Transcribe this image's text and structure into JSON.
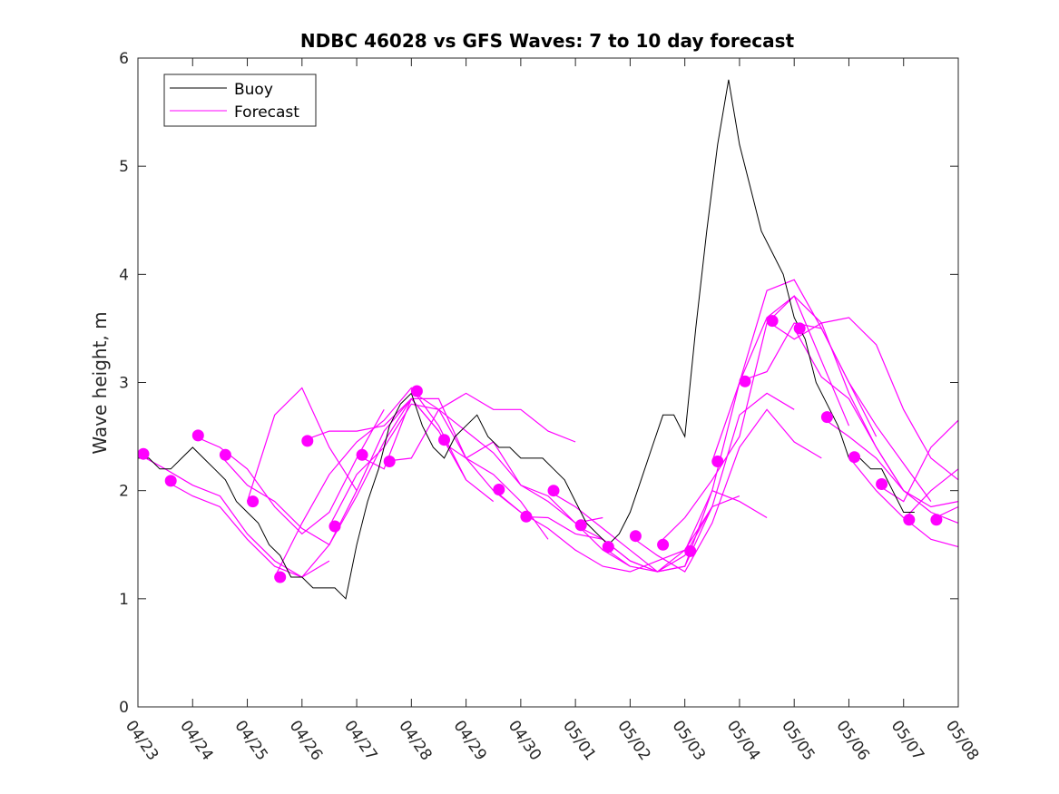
{
  "chart_data": {
    "type": "line",
    "title": "NDBC 46028 vs GFS Waves: 7 to 10 day forecast",
    "xlabel": "",
    "ylabel": "Wave height, m",
    "xlim": [
      "04/23",
      "05/08"
    ],
    "ylim": [
      0,
      6
    ],
    "x_ticks": [
      "04/23",
      "04/24",
      "04/25",
      "04/26",
      "04/27",
      "04/28",
      "04/29",
      "04/30",
      "05/01",
      "05/02",
      "05/03",
      "05/04",
      "05/05",
      "05/06",
      "05/07",
      "05/08"
    ],
    "y_ticks": [
      0,
      1,
      2,
      3,
      4,
      5,
      6
    ],
    "grid": false,
    "legend": {
      "position": "top-left",
      "entries": [
        "Buoy",
        "Forecast"
      ]
    },
    "colors": {
      "buoy": "#000000",
      "forecast": "#ff00ff",
      "axis": "#262626"
    },
    "buoy": {
      "name": "Buoy",
      "x": [
        0.0,
        0.2,
        0.4,
        0.6,
        0.8,
        1.0,
        1.2,
        1.4,
        1.6,
        1.8,
        2.0,
        2.2,
        2.4,
        2.6,
        2.8,
        3.0,
        3.2,
        3.4,
        3.6,
        3.8,
        4.0,
        4.2,
        4.4,
        4.6,
        4.8,
        5.0,
        5.2,
        5.4,
        5.6,
        5.8,
        6.0,
        6.2,
        6.4,
        6.6,
        6.8,
        7.0,
        7.2,
        7.4,
        7.6,
        7.8,
        8.0,
        8.2,
        8.4,
        8.6,
        8.8,
        9.0,
        9.2,
        9.4,
        9.6,
        9.8,
        10.0,
        10.2,
        10.4,
        10.6,
        10.8,
        11.0,
        11.2,
        11.4,
        11.6,
        11.8,
        12.0,
        12.2,
        12.4,
        12.6,
        12.8,
        13.0,
        13.2,
        13.4,
        13.6,
        13.8,
        14.0,
        14.2
      ],
      "values": [
        2.3,
        2.3,
        2.2,
        2.2,
        2.3,
        2.4,
        2.3,
        2.2,
        2.1,
        1.9,
        1.8,
        1.7,
        1.5,
        1.4,
        1.2,
        1.2,
        1.1,
        1.1,
        1.1,
        1.0,
        1.5,
        1.9,
        2.2,
        2.6,
        2.8,
        2.9,
        2.6,
        2.4,
        2.3,
        2.5,
        2.6,
        2.7,
        2.5,
        2.4,
        2.4,
        2.3,
        2.3,
        2.3,
        2.2,
        2.1,
        1.9,
        1.7,
        1.6,
        1.5,
        1.6,
        1.8,
        2.1,
        2.4,
        2.7,
        2.7,
        2.5,
        3.5,
        4.4,
        5.2,
        5.8,
        5.2,
        4.8,
        4.4,
        4.2,
        4.0,
        3.6,
        3.4,
        3.0,
        2.8,
        2.6,
        2.3,
        2.3,
        2.2,
        2.2,
        2.0,
        1.8,
        1.8
      ]
    },
    "forecasts": [
      {
        "x": [
          0.0,
          0.5,
          1.0,
          1.5,
          2.0,
          2.5,
          3.0,
          3.5
        ],
        "values": [
          2.34,
          2.2,
          2.05,
          1.95,
          1.6,
          1.35,
          1.2,
          1.35
        ]
      },
      {
        "x": [
          0.5,
          1.0,
          1.5,
          2.0,
          2.5,
          3.0,
          3.5,
          4.0
        ],
        "values": [
          2.09,
          1.95,
          1.85,
          1.55,
          1.3,
          1.2,
          1.5,
          2.0
        ]
      },
      {
        "x": [
          1.0,
          1.5,
          2.0,
          2.5,
          3.0,
          3.5,
          4.0,
          4.5
        ],
        "values": [
          2.51,
          2.4,
          2.2,
          1.85,
          1.6,
          1.8,
          2.3,
          2.75
        ]
      },
      {
        "x": [
          1.5,
          2.0,
          2.5,
          3.0,
          3.5,
          4.0,
          4.5,
          5.0
        ],
        "values": [
          2.33,
          2.05,
          1.9,
          1.65,
          1.5,
          1.95,
          2.45,
          2.85
        ]
      },
      {
        "x": [
          2.0,
          2.5,
          3.0,
          3.5,
          4.0,
          4.5,
          5.0,
          5.5
        ],
        "values": [
          1.9,
          2.7,
          2.95,
          2.4,
          2.0,
          2.55,
          2.85,
          2.55
        ]
      },
      {
        "x": [
          2.5,
          3.0,
          3.5,
          4.0,
          4.5,
          5.0,
          5.5,
          6.0
        ],
        "values": [
          1.2,
          1.7,
          2.15,
          2.45,
          2.65,
          2.95,
          2.6,
          2.1
        ]
      },
      {
        "x": [
          3.0,
          3.5,
          4.0,
          4.5,
          5.0,
          5.5,
          6.0,
          6.5
        ],
        "values": [
          2.46,
          2.55,
          2.55,
          2.6,
          2.85,
          2.55,
          2.1,
          1.9
        ]
      },
      {
        "x": [
          3.5,
          4.0,
          4.5,
          5.0,
          5.5,
          6.0,
          6.5,
          7.0
        ],
        "values": [
          1.67,
          2.15,
          2.4,
          2.8,
          2.75,
          2.3,
          2.0,
          1.8
        ]
      },
      {
        "x": [
          4.0,
          4.5,
          5.0,
          5.5,
          6.0,
          6.5,
          7.0,
          7.5
        ],
        "values": [
          2.33,
          2.2,
          2.85,
          2.85,
          2.3,
          2.15,
          1.9,
          1.55
        ]
      },
      {
        "x": [
          4.5,
          5.0,
          5.5,
          6.0,
          6.5,
          7.0,
          7.5,
          8.0
        ],
        "values": [
          2.27,
          2.3,
          2.75,
          2.9,
          2.75,
          2.75,
          2.55,
          2.45
        ]
      },
      {
        "x": [
          5.0,
          5.5,
          6.0,
          6.5,
          7.0,
          7.5,
          8.0,
          8.5
        ],
        "values": [
          2.92,
          2.75,
          2.55,
          2.35,
          2.05,
          1.9,
          1.7,
          1.75
        ]
      },
      {
        "x": [
          5.5,
          6.0,
          6.5,
          7.0,
          7.5,
          8.0,
          8.5,
          9.0
        ],
        "values": [
          2.47,
          2.3,
          2.45,
          2.05,
          1.95,
          1.7,
          1.45,
          1.3
        ]
      },
      {
        "x": [
          6.5,
          7.0,
          7.5,
          8.0,
          8.5,
          9.0,
          9.5,
          10.0
        ],
        "values": [
          2.01,
          1.8,
          1.65,
          1.45,
          1.3,
          1.25,
          1.35,
          1.45
        ]
      },
      {
        "x": [
          7.0,
          7.5,
          8.0,
          8.5,
          9.0,
          9.5,
          10.0,
          10.5
        ],
        "values": [
          1.76,
          1.75,
          1.6,
          1.55,
          1.35,
          1.25,
          1.45,
          1.85
        ]
      },
      {
        "x": [
          7.5,
          8.0,
          8.5,
          9.0,
          9.5,
          10.0,
          10.5,
          11.0
        ],
        "values": [
          2.0,
          1.85,
          1.65,
          1.45,
          1.25,
          1.4,
          1.85,
          1.95
        ]
      },
      {
        "x": [
          8.0,
          8.5,
          9.0,
          9.5,
          10.0,
          10.5,
          11.0,
          11.5
        ],
        "values": [
          1.68,
          1.55,
          1.35,
          1.25,
          1.3,
          2.0,
          1.9,
          1.75
        ]
      },
      {
        "x": [
          8.5,
          9.0,
          9.5,
          10.0,
          10.5,
          11.0,
          11.5,
          12.0
        ],
        "values": [
          1.48,
          1.3,
          1.25,
          1.3,
          1.85,
          2.7,
          2.9,
          2.75
        ]
      },
      {
        "x": [
          9.0,
          9.5,
          10.0,
          10.5,
          11.0,
          11.5,
          12.0,
          12.5
        ],
        "values": [
          1.58,
          1.4,
          1.25,
          1.7,
          2.4,
          2.75,
          2.45,
          2.3
        ]
      },
      {
        "x": [
          9.5,
          10.0,
          10.5,
          11.0,
          11.5,
          12.0,
          12.5,
          13.0
        ],
        "values": [
          1.5,
          1.75,
          2.1,
          2.5,
          3.55,
          3.8,
          3.2,
          2.6
        ]
      },
      {
        "x": [
          10.0,
          10.5,
          11.0,
          11.5,
          12.0,
          12.5,
          13.0,
          13.5
        ],
        "values": [
          1.44,
          2.0,
          3.0,
          3.85,
          3.95,
          3.5,
          3.0,
          2.5
        ]
      },
      {
        "x": [
          10.5,
          11.0,
          11.5,
          12.0,
          12.5,
          13.0,
          13.5,
          14.0
        ],
        "values": [
          2.27,
          3.0,
          3.6,
          3.8,
          3.55,
          2.9,
          2.4,
          2.0
        ]
      },
      {
        "x": [
          11.0,
          11.5,
          12.0,
          12.5,
          13.0,
          13.5,
          14.0,
          14.5
        ],
        "values": [
          3.01,
          3.1,
          3.55,
          3.5,
          3.0,
          2.6,
          2.25,
          1.9
        ]
      },
      {
        "x": [
          11.5,
          12.0,
          12.5,
          13.0,
          13.5,
          14.0,
          14.5,
          15.0
        ],
        "values": [
          3.57,
          3.4,
          3.55,
          3.6,
          3.35,
          2.75,
          2.3,
          2.1
        ]
      },
      {
        "x": [
          12.0,
          12.5,
          13.0,
          13.5,
          14.0,
          14.5,
          15.0
        ],
        "values": [
          3.5,
          3.05,
          2.85,
          2.4,
          2.0,
          1.8,
          1.7
        ]
      },
      {
        "x": [
          12.5,
          13.0,
          13.5,
          14.0,
          14.5,
          15.0
        ],
        "values": [
          2.68,
          2.5,
          2.3,
          2.0,
          1.85,
          1.9
        ]
      },
      {
        "x": [
          13.0,
          13.5,
          14.0,
          14.5,
          15.0
        ],
        "values": [
          2.31,
          2.0,
          1.75,
          1.55,
          1.48
        ]
      },
      {
        "x": [
          13.5,
          14.0,
          14.5,
          15.0
        ],
        "values": [
          2.06,
          1.9,
          2.4,
          2.65
        ]
      },
      {
        "x": [
          14.0,
          14.5,
          15.0
        ],
        "values": [
          1.73,
          2.0,
          2.2
        ]
      },
      {
        "x": [
          14.5,
          15.0
        ],
        "values": [
          1.73,
          1.85
        ]
      }
    ],
    "forecast_markers": {
      "x": [
        0.1,
        0.6,
        1.1,
        1.6,
        2.1,
        2.6,
        3.1,
        3.6,
        4.1,
        4.6,
        5.1,
        5.6,
        6.6,
        7.1,
        7.6,
        8.1,
        8.6,
        9.1,
        9.6,
        10.1,
        10.6,
        11.1,
        11.6,
        12.1,
        12.6,
        13.1,
        13.6,
        14.1,
        14.6
      ],
      "values": [
        2.34,
        2.09,
        2.51,
        2.33,
        1.9,
        1.2,
        2.46,
        1.67,
        2.33,
        2.27,
        2.92,
        2.47,
        2.01,
        1.76,
        2.0,
        1.68,
        1.48,
        1.58,
        1.5,
        1.44,
        2.27,
        3.01,
        3.57,
        3.5,
        2.68,
        2.31,
        2.06,
        1.73,
        1.73
      ]
    }
  }
}
